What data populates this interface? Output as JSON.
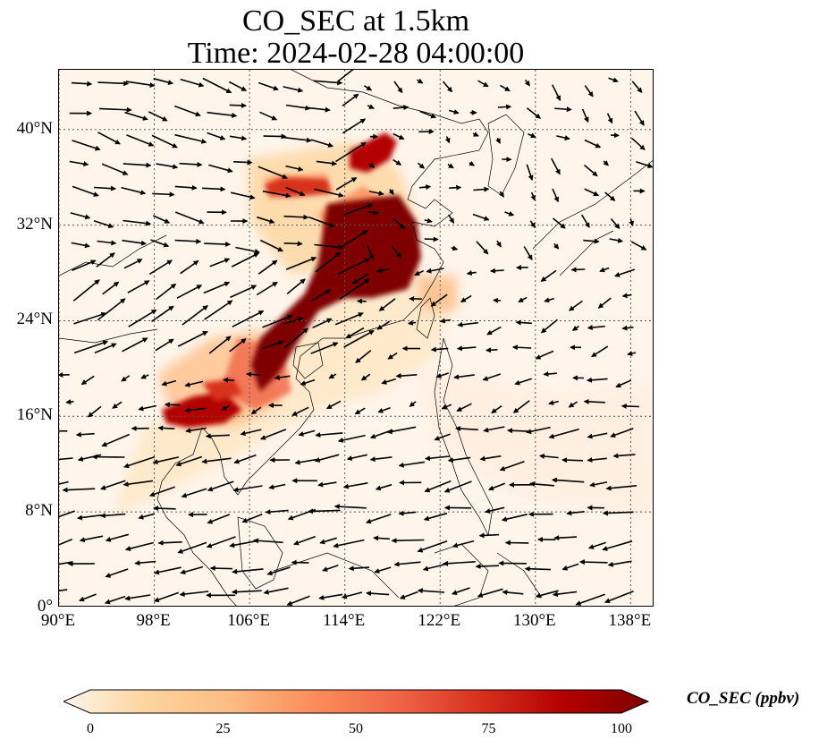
{
  "title": {
    "line1": "CO_SEC at 1.5km",
    "line2": "Time: 2024-02-28 04:00:00"
  },
  "map": {
    "lon_range": [
      90,
      140
    ],
    "lat_range": [
      0,
      45
    ],
    "lon_ticks": [
      "90°E",
      "98°E",
      "106°E",
      "114°E",
      "122°E",
      "130°E",
      "138°E"
    ],
    "lat_ticks": [
      "0°",
      "8°N",
      "16°N",
      "24°N",
      "32°N",
      "40°N"
    ],
    "lon_tick_values": [
      90,
      98,
      106,
      114,
      122,
      130,
      138
    ],
    "lat_tick_values": [
      0,
      8,
      16,
      24,
      32,
      40
    ],
    "gridlines": true,
    "colormap": "OrRd"
  },
  "colorbar": {
    "label": "CO_SEC (ppbv)",
    "ticks": [
      "0",
      "25",
      "50",
      "75",
      "100"
    ],
    "range": [
      0,
      100
    ],
    "colors": [
      "#fff5eb",
      "#fdd49e",
      "#fdbb84",
      "#fc8d59",
      "#ef6548",
      "#d7301f",
      "#b30000",
      "#7f0000"
    ]
  }
}
